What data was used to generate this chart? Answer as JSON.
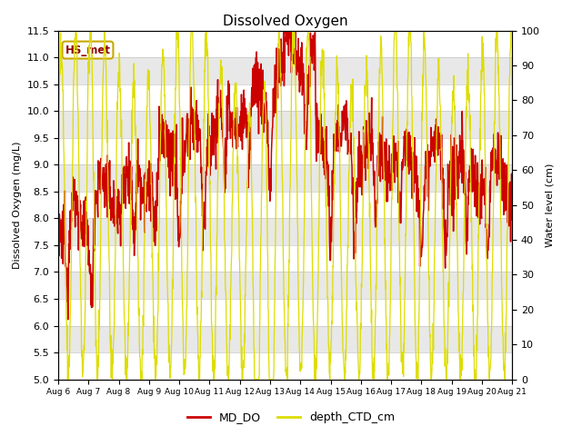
{
  "title": "Dissolved Oxygen",
  "ylabel_left": "Dissolved Oxygen (mg/L)",
  "ylabel_right": "Water level (cm)",
  "ylim_left": [
    5.0,
    11.5
  ],
  "ylim_right": [
    0,
    100
  ],
  "yticks_left": [
    5.0,
    5.5,
    6.0,
    6.5,
    7.0,
    7.5,
    8.0,
    8.5,
    9.0,
    9.5,
    10.0,
    10.5,
    11.0,
    11.5
  ],
  "yticks_right": [
    0,
    10,
    20,
    30,
    40,
    50,
    60,
    70,
    80,
    90,
    100
  ],
  "xtick_labels": [
    "Aug 6",
    "Aug 7",
    "Aug 8",
    "Aug 9",
    "Aug 10",
    "Aug 11",
    "Aug 12",
    "Aug 13",
    "Aug 14",
    "Aug 15",
    "Aug 16",
    "Aug 17",
    "Aug 18",
    "Aug 19",
    "Aug 20",
    "Aug 21"
  ],
  "legend_label_red": "MD_DO",
  "legend_label_yellow": "depth_CTD_cm",
  "annotation_text": "HS_met",
  "annotation_color": "#8B0000",
  "line_color_red": "#CC0000",
  "line_color_yellow": "#DDDD00",
  "background_stripe_color": "#E8E8E8",
  "title_fontsize": 11,
  "label_fontsize": 8,
  "tick_fontsize": 8,
  "annotation_box_color": "#C8A800",
  "fig_facecolor": "#FFFFFF"
}
